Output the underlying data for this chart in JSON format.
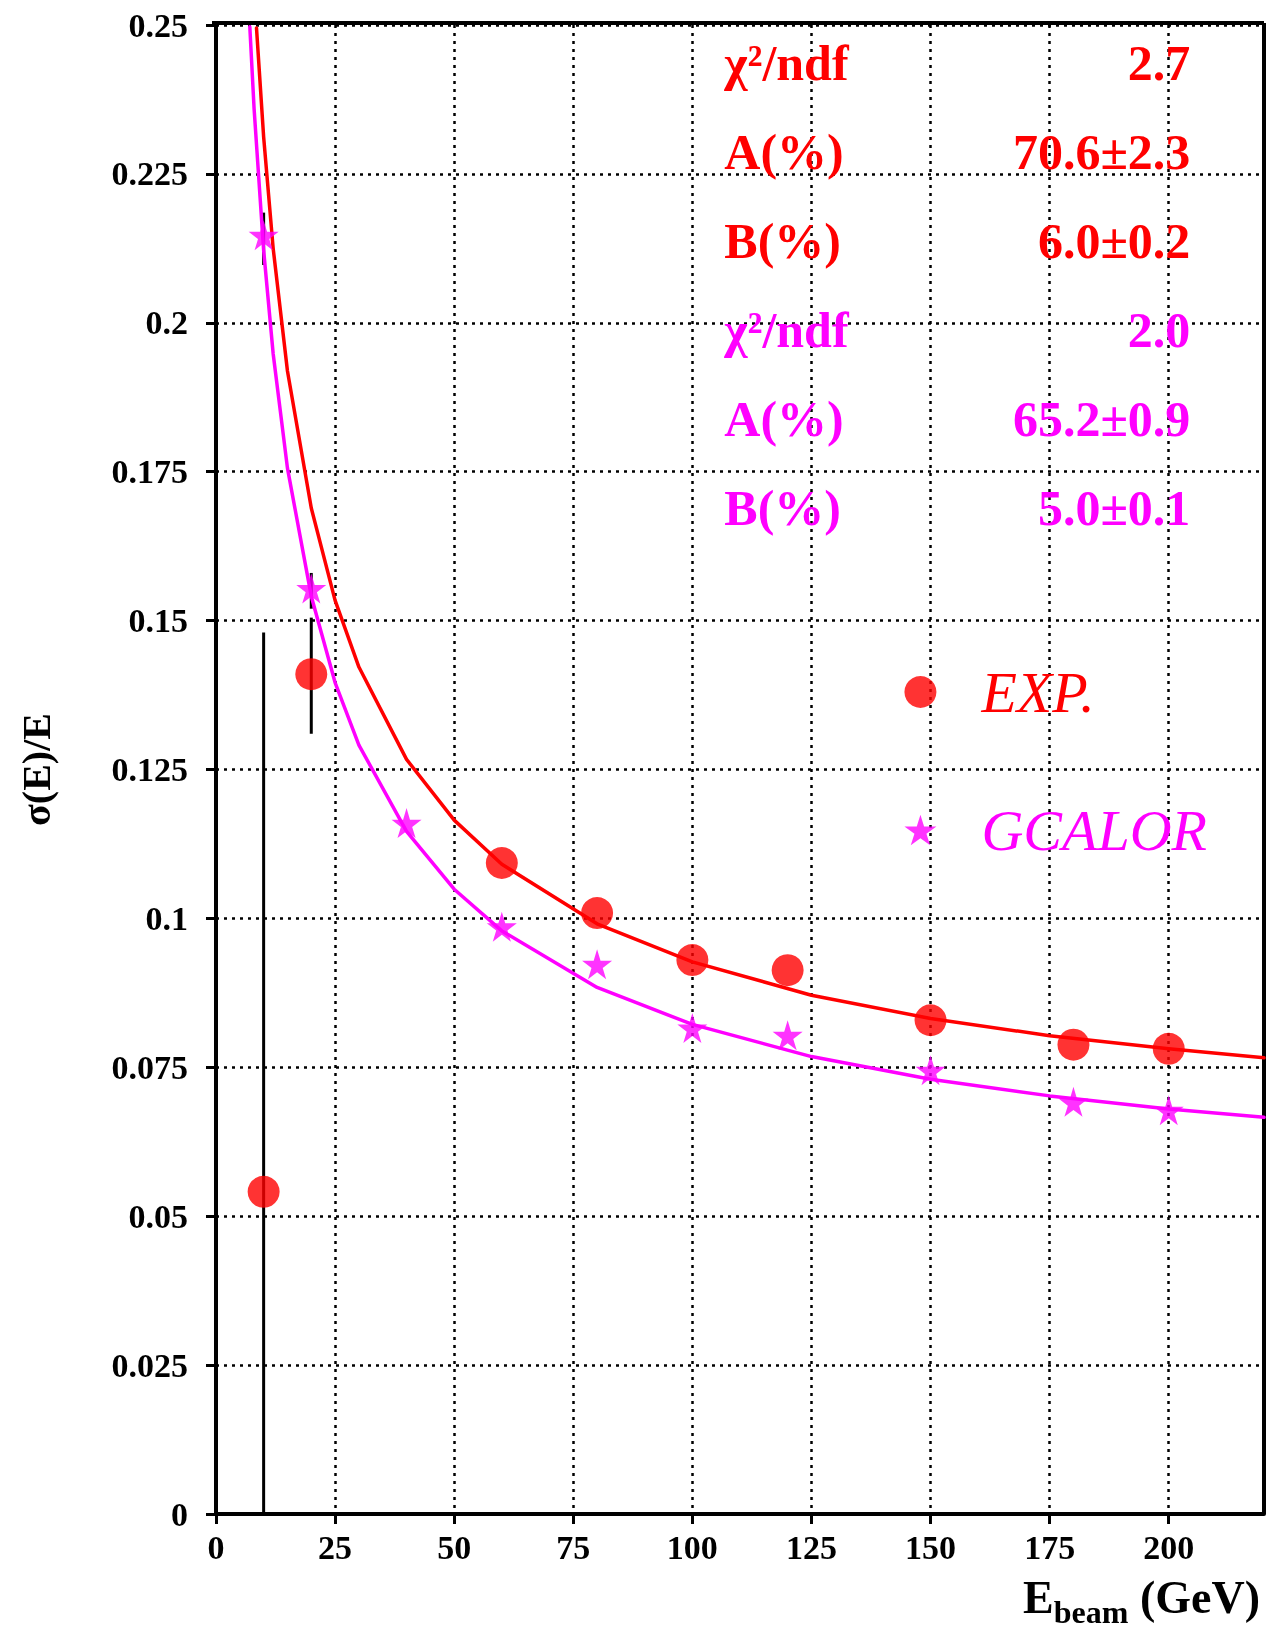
{
  "chart_data": {
    "type": "scatter",
    "xlabel": "E$_{beam}$ (GeV)",
    "ylabel": "σ(E)/E",
    "xlim": [
      0,
      220
    ],
    "xticks": [
      0,
      25,
      50,
      75,
      100,
      125,
      150,
      175,
      200
    ],
    "ylim": [
      0,
      0.25
    ],
    "yticks": [
      0,
      0.025,
      0.05,
      0.075,
      0.1,
      0.125,
      0.15,
      0.175,
      0.2,
      0.225,
      0.25
    ],
    "grid": true,
    "legend": "right",
    "annotations": [
      "χ²/ndf",
      "2.7",
      "A(%)",
      "70.6±2.3",
      "B(%)",
      "6.0±0.2",
      "χ²/ndf",
      "2.0",
      "A(%)",
      "65.2±0.9",
      "B(%)",
      "5.0±0.1"
    ],
    "series": [
      {
        "name": "EXP.",
        "marker": "circle",
        "color": "#ff0000",
        "x": [
          10,
          20,
          60,
          80,
          100,
          120,
          150,
          180,
          200
        ],
        "values": [
          0.0541,
          0.141,
          0.1093,
          0.1009,
          0.093,
          0.0913,
          0.0829,
          0.0788,
          0.0781
        ],
        "errors": [
          [
            0,
            0.148
          ],
          [
            0.131,
            0.1505
          ],
          null,
          null,
          null,
          null,
          null,
          null,
          null
        ]
      },
      {
        "name": "GCALOR",
        "marker": "star",
        "color": "#ff00ff",
        "x": [
          10,
          20,
          40,
          60,
          80,
          100,
          120,
          150,
          180,
          200
        ],
        "values": [
          0.2147,
          0.1554,
          0.116,
          0.0986,
          0.0923,
          0.0816,
          0.0804,
          0.0745,
          0.0692,
          0.0678
        ],
        "errors": [
          [
            0.2097,
            0.2185
          ],
          [
            0.152,
            0.158
          ],
          null,
          null,
          null,
          null,
          null,
          null,
          null,
          null
        ]
      },
      {
        "type": "line",
        "marker": "none",
        "line_style": "solid",
        "color": "#ff0000",
        "x": [
          8.5,
          10,
          12,
          15,
          20,
          25,
          30,
          40,
          50,
          60,
          80,
          100,
          125,
          150,
          175,
          200,
          220
        ],
        "values": [
          0.2495,
          0.2312,
          0.2125,
          0.1919,
          0.1689,
          0.1534,
          0.1422,
          0.1267,
          0.1165,
          0.1091,
          0.0991,
          0.0927,
          0.0871,
          0.0832,
          0.0803,
          0.0781,
          0.0766
        ]
      },
      {
        "type": "line",
        "marker": "none",
        "line_style": "solid",
        "color": "#ff00ff",
        "x": [
          7.1,
          8,
          10,
          12,
          15,
          20,
          25,
          30,
          40,
          50,
          60,
          80,
          100,
          125,
          150,
          175,
          200,
          220
        ],
        "values": [
          0.2497,
          0.2359,
          0.2122,
          0.1948,
          0.1756,
          0.1541,
          0.1396,
          0.1291,
          0.1146,
          0.1049,
          0.0979,
          0.0884,
          0.0822,
          0.0768,
          0.073,
          0.0702,
          0.068,
          0.0666
        ]
      }
    ]
  }
}
